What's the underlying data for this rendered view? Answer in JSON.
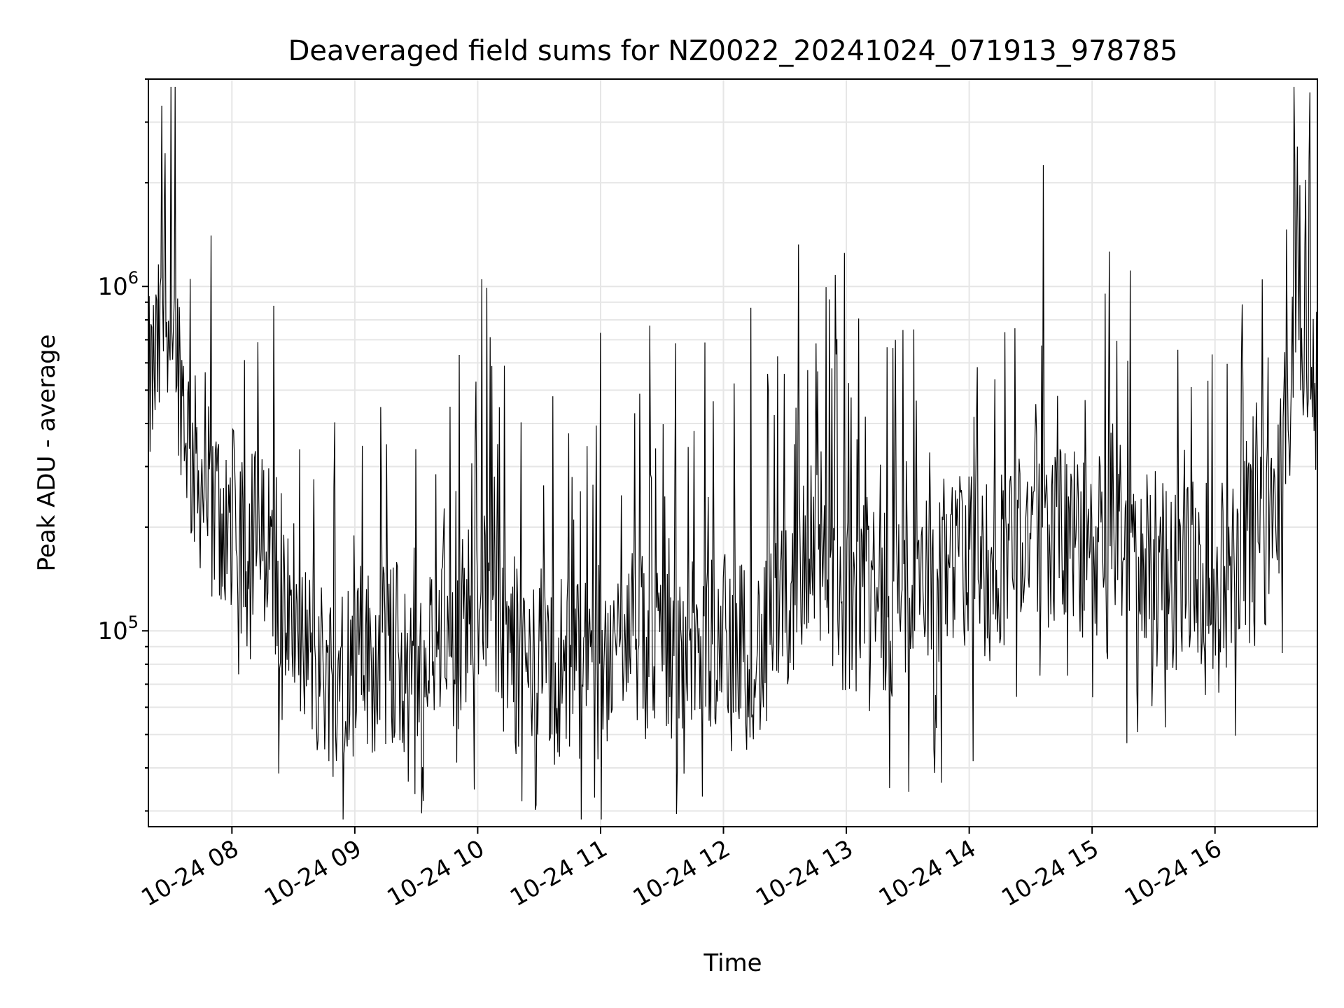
{
  "chart_data": {
    "type": "line",
    "title": "Deaveraged field sums for NZ0022_20241024_071913_978785",
    "xlabel": "Time",
    "ylabel": "Peak ADU - average",
    "y_scale": "log",
    "ylim": [
      27000,
      4000000
    ],
    "xlim": [
      "10-24 07:19:13",
      "10-24 16:50"
    ],
    "x_tick_labels": [
      "10-24 08",
      "10-24 09",
      "10-24 10",
      "10-24 11",
      "10-24 12",
      "10-24 13",
      "10-24 14",
      "10-24 15",
      "10-24 16"
    ],
    "y_tick_labels": [
      {
        "base": "10",
        "exp": "5"
      },
      {
        "base": "10",
        "exp": "6"
      }
    ],
    "grid": true,
    "line_color": "#000000",
    "grid_color": "#e6e6e6",
    "series": [
      {
        "x": [
          "07:20",
          "07:30",
          "07:40",
          "07:50",
          "08:00",
          "08:10",
          "08:20",
          "08:30",
          "08:40",
          "08:50",
          "09:00",
          "09:10",
          "09:20",
          "09:30",
          "09:40",
          "09:50",
          "10:00",
          "10:10",
          "10:20",
          "10:30",
          "10:40",
          "10:50",
          "11:00",
          "11:10",
          "11:20",
          "11:30",
          "11:40",
          "11:50",
          "12:00",
          "12:10",
          "12:20",
          "12:30",
          "12:40",
          "12:50",
          "13:00",
          "13:10",
          "13:20",
          "13:30",
          "13:40",
          "13:50",
          "14:00",
          "14:10",
          "14:20",
          "14:30",
          "14:40",
          "14:50",
          "15:00",
          "15:10",
          "15:20",
          "15:30",
          "15:40",
          "15:50",
          "16:00",
          "16:10",
          "16:20",
          "16:30",
          "16:40",
          "16:50"
        ],
        "y": [
          500000,
          900000,
          320000,
          230000,
          210000,
          190000,
          160000,
          110000,
          80000,
          75000,
          90000,
          80000,
          85000,
          80000,
          90000,
          95000,
          140000,
          100000,
          85000,
          75000,
          80000,
          80000,
          75000,
          95000,
          90000,
          90000,
          85000,
          85000,
          100000,
          95000,
          85000,
          110000,
          180000,
          140000,
          120000,
          130000,
          125000,
          130000,
          140000,
          150000,
          160000,
          150000,
          180000,
          200000,
          190000,
          180000,
          160000,
          220000,
          170000,
          150000,
          140000,
          150000,
          140000,
          150000,
          170000,
          230000,
          700000,
          500000
        ]
      }
    ]
  }
}
